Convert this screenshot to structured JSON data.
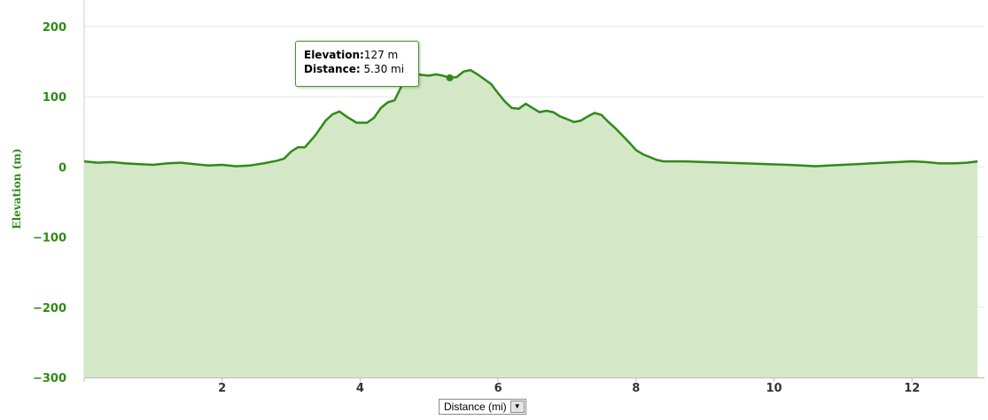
{
  "chart_data": {
    "type": "area",
    "xlabel": "Distance (mi)",
    "ylabel": "Elevation (m)",
    "xlim": [
      0,
      13.05
    ],
    "ylim": [
      -300,
      200
    ],
    "x_ticks": [
      "2",
      "4",
      "6",
      "8",
      "10",
      "12"
    ],
    "y_ticks": [
      "200",
      "100",
      "0",
      "−100",
      "−200",
      "−300"
    ],
    "grid": true,
    "legend": "none",
    "series": [
      {
        "x": [
          0.0,
          0.2,
          0.4,
          0.6,
          0.8,
          1.0,
          1.2,
          1.4,
          1.6,
          1.8,
          2.0,
          2.2,
          2.4,
          2.6,
          2.8,
          2.9,
          3.0,
          3.1,
          3.2,
          3.35,
          3.5,
          3.6,
          3.7,
          3.8,
          3.95,
          4.1,
          4.2,
          4.3,
          4.4,
          4.5,
          4.6,
          4.7,
          4.8,
          4.9,
          5.0,
          5.1,
          5.2,
          5.3,
          5.4,
          5.5,
          5.6,
          5.7,
          5.8,
          5.9,
          6.0,
          6.1,
          6.2,
          6.3,
          6.4,
          6.5,
          6.6,
          6.7,
          6.8,
          6.9,
          7.0,
          7.1,
          7.2,
          7.3,
          7.4,
          7.5,
          7.6,
          7.7,
          7.8,
          7.9,
          8.0,
          8.1,
          8.2,
          8.3,
          8.4,
          8.5,
          8.7,
          9.0,
          9.3,
          9.6,
          9.9,
          10.2,
          10.4,
          10.6,
          10.8,
          11.0,
          11.2,
          11.4,
          11.6,
          11.8,
          12.0,
          12.2,
          12.4,
          12.6,
          12.8,
          12.95
        ],
        "y": [
          8,
          6,
          7,
          5,
          4,
          3,
          5,
          6,
          4,
          2,
          3,
          1,
          2,
          5,
          9,
          12,
          22,
          28,
          28,
          45,
          66,
          75,
          79,
          72,
          63,
          63,
          70,
          84,
          92,
          95,
          115,
          128,
          133,
          131,
          130,
          132,
          130,
          127,
          128,
          136,
          138,
          132,
          125,
          118,
          105,
          93,
          84,
          83,
          90,
          84,
          78,
          80,
          78,
          72,
          68,
          64,
          66,
          72,
          77,
          74,
          64,
          55,
          45,
          35,
          24,
          18,
          14,
          10,
          8,
          8,
          8,
          7,
          6,
          5,
          4,
          3,
          2,
          1,
          2,
          3,
          4,
          5,
          6,
          7,
          8,
          7,
          5,
          5,
          6,
          8
        ],
        "color": "#2f8a16",
        "fill": "#d4e8c8"
      }
    ],
    "highlight_point": {
      "x": 5.3,
      "y": 127
    }
  },
  "tooltip": {
    "elevation_label": "Elevation:",
    "elevation_value": "127 m",
    "distance_label": "Distance:",
    "distance_value": "5.30 mi"
  },
  "axis_selector": {
    "selected": "Distance (mi)",
    "icon": "dropdown-arrow-icon"
  }
}
